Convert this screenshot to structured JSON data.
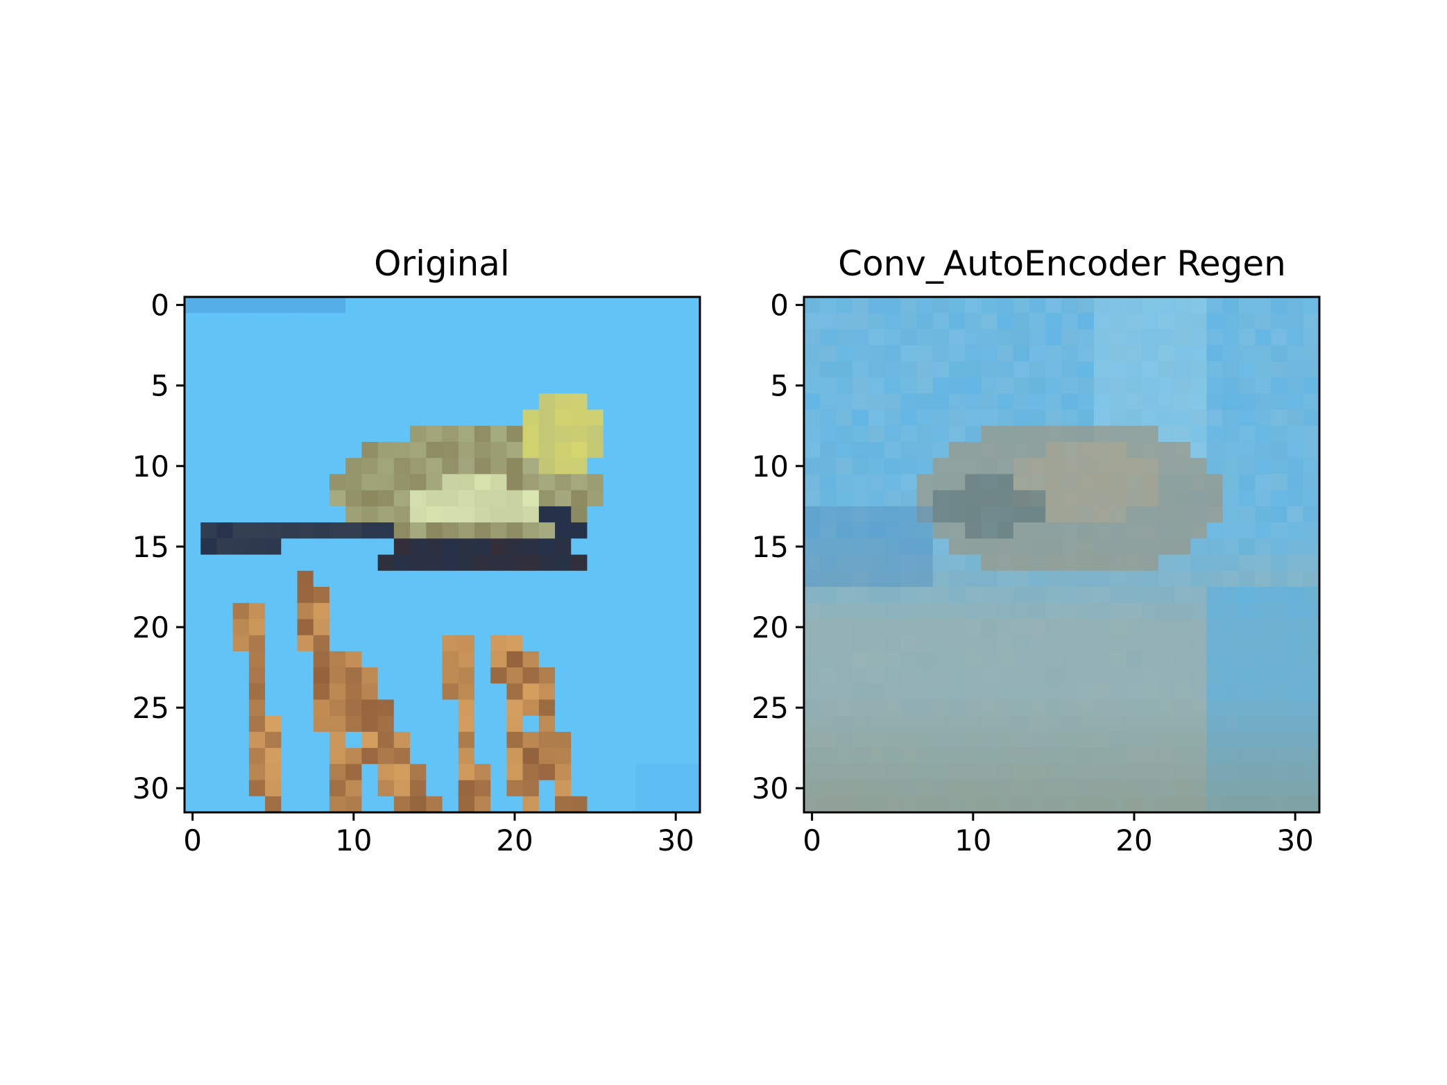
{
  "chart_data": [
    {
      "type": "heatmap",
      "title": "Original",
      "xlabel": "",
      "ylabel": "",
      "xlim": [
        -0.5,
        31.5
      ],
      "ylim": [
        31.5,
        -0.5
      ],
      "xticks": [
        0,
        10,
        20,
        30
      ],
      "yticks": [
        0,
        5,
        10,
        15,
        20,
        25,
        30
      ],
      "grid": false,
      "legend": "none",
      "image": "32x32 RGB image: small yellow-green bird with dark tail on orange grass stems, sky-blue background"
    },
    {
      "type": "heatmap",
      "title": "Conv_AutoEncoder Regen",
      "xlabel": "",
      "ylabel": "",
      "xlim": [
        -0.5,
        31.5
      ],
      "ylim": [
        31.5,
        -0.5
      ],
      "xticks": [
        0,
        10,
        20,
        30
      ],
      "yticks": [
        0,
        5,
        10,
        15,
        20,
        25,
        30
      ],
      "grid": false,
      "legend": "none",
      "image": "32x32 RGB reconstruction: blurred blue background with a greyish-brown horizontal blob and pale grey-green lower region"
    }
  ],
  "colors": {
    "sky": "#62c3f7",
    "sky_top": "#55aee6",
    "bird_body": "#a7ab80",
    "bird_light": "#d9e6b2",
    "bird_dark": "#25324a",
    "stem_orange": "#d6a060",
    "stem_dark": "#5c3020",
    "regen_blue": "#56b2e6",
    "regen_blob": "#9a9886",
    "regen_lower": "#9fb0aa"
  }
}
